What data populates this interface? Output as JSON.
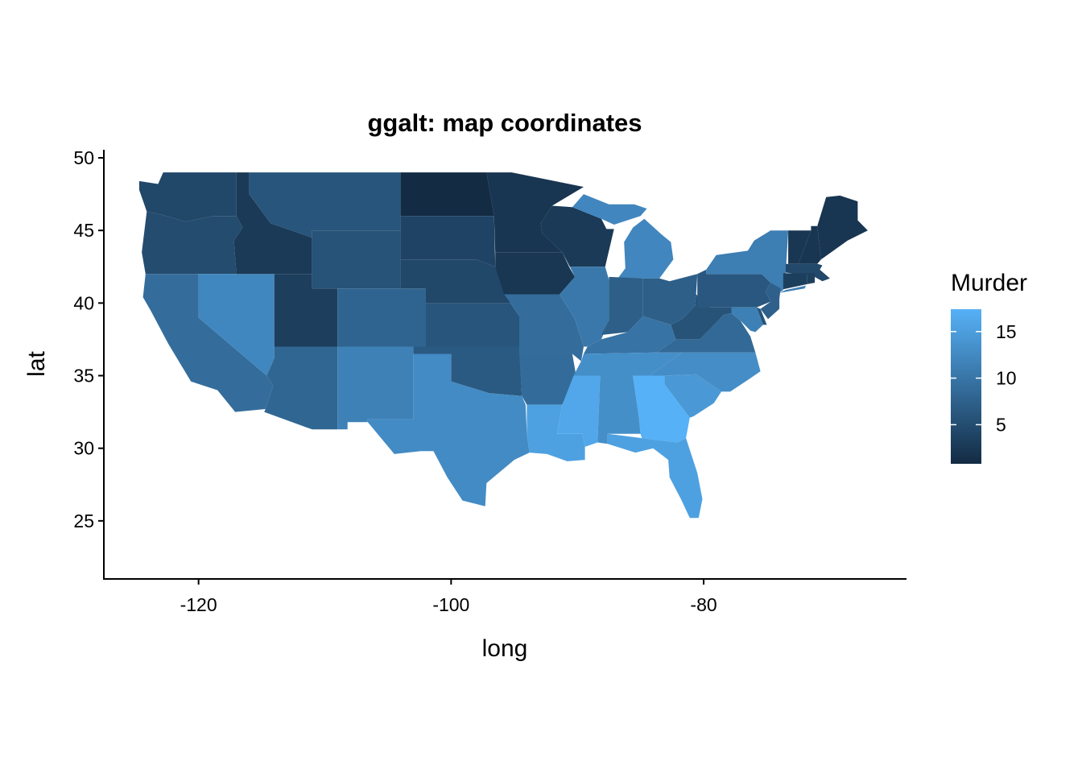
{
  "chart_data": {
    "type": "map",
    "title": "ggalt: map coordinates",
    "xlabel": "long",
    "ylabel": "lat",
    "xlim": [
      -127.5,
      -64
    ],
    "ylim": [
      21,
      50.5
    ],
    "x_ticks": [
      -120,
      -100,
      -80
    ],
    "y_ticks": [
      25,
      30,
      35,
      40,
      45,
      50
    ],
    "legend": {
      "title": "Murder",
      "ticks": [
        5,
        10,
        15
      ],
      "range": [
        0.8,
        17.4
      ],
      "low_color": "#132B43",
      "high_color": "#56B1F7",
      "placement": "right"
    },
    "regions": [
      {
        "name": "Washington",
        "murder": 4.3
      },
      {
        "name": "Oregon",
        "murder": 4.9
      },
      {
        "name": "California",
        "murder": 9.0
      },
      {
        "name": "Nevada",
        "murder": 12.2
      },
      {
        "name": "Idaho",
        "murder": 2.6
      },
      {
        "name": "Montana",
        "murder": 6.0
      },
      {
        "name": "Wyoming",
        "murder": 5.7
      },
      {
        "name": "Utah",
        "murder": 3.2
      },
      {
        "name": "Arizona",
        "murder": 8.1
      },
      {
        "name": "Colorado",
        "murder": 7.9
      },
      {
        "name": "New Mexico",
        "murder": 11.5
      },
      {
        "name": "North Dakota",
        "murder": 0.8
      },
      {
        "name": "South Dakota",
        "murder": 3.8
      },
      {
        "name": "Nebraska",
        "murder": 4.3
      },
      {
        "name": "Kansas",
        "murder": 6.0
      },
      {
        "name": "Oklahoma",
        "murder": 6.6
      },
      {
        "name": "Texas",
        "murder": 12.7
      },
      {
        "name": "Minnesota",
        "murder": 2.1
      },
      {
        "name": "Iowa",
        "murder": 2.2
      },
      {
        "name": "Missouri",
        "murder": 9.0
      },
      {
        "name": "Arkansas",
        "murder": 8.8
      },
      {
        "name": "Louisiana",
        "murder": 15.4
      },
      {
        "name": "Wisconsin",
        "murder": 2.6
      },
      {
        "name": "Illinois",
        "murder": 10.4
      },
      {
        "name": "Michigan",
        "murder": 12.1
      },
      {
        "name": "Indiana",
        "murder": 7.2
      },
      {
        "name": "Ohio",
        "murder": 7.3
      },
      {
        "name": "Kentucky",
        "murder": 9.7
      },
      {
        "name": "Tennessee",
        "murder": 13.2
      },
      {
        "name": "Mississippi",
        "murder": 16.1
      },
      {
        "name": "Alabama",
        "murder": 13.2
      },
      {
        "name": "Georgia",
        "murder": 17.4
      },
      {
        "name": "Florida",
        "murder": 15.4
      },
      {
        "name": "South Carolina",
        "murder": 14.4
      },
      {
        "name": "North Carolina",
        "murder": 13.0
      },
      {
        "name": "Virginia",
        "murder": 8.5
      },
      {
        "name": "West Virginia",
        "murder": 5.7
      },
      {
        "name": "Pennsylvania",
        "murder": 6.3
      },
      {
        "name": "New York",
        "murder": 11.1
      },
      {
        "name": "New Jersey",
        "murder": 7.4
      },
      {
        "name": "Maryland",
        "murder": 11.3
      },
      {
        "name": "Delaware",
        "murder": 5.9
      },
      {
        "name": "Vermont",
        "murder": 2.2
      },
      {
        "name": "New Hampshire",
        "murder": 2.1
      },
      {
        "name": "Maine",
        "murder": 2.1
      },
      {
        "name": "Massachusetts",
        "murder": 4.4
      },
      {
        "name": "Connecticut",
        "murder": 3.3
      },
      {
        "name": "Rhode Island",
        "murder": 3.4
      }
    ]
  }
}
